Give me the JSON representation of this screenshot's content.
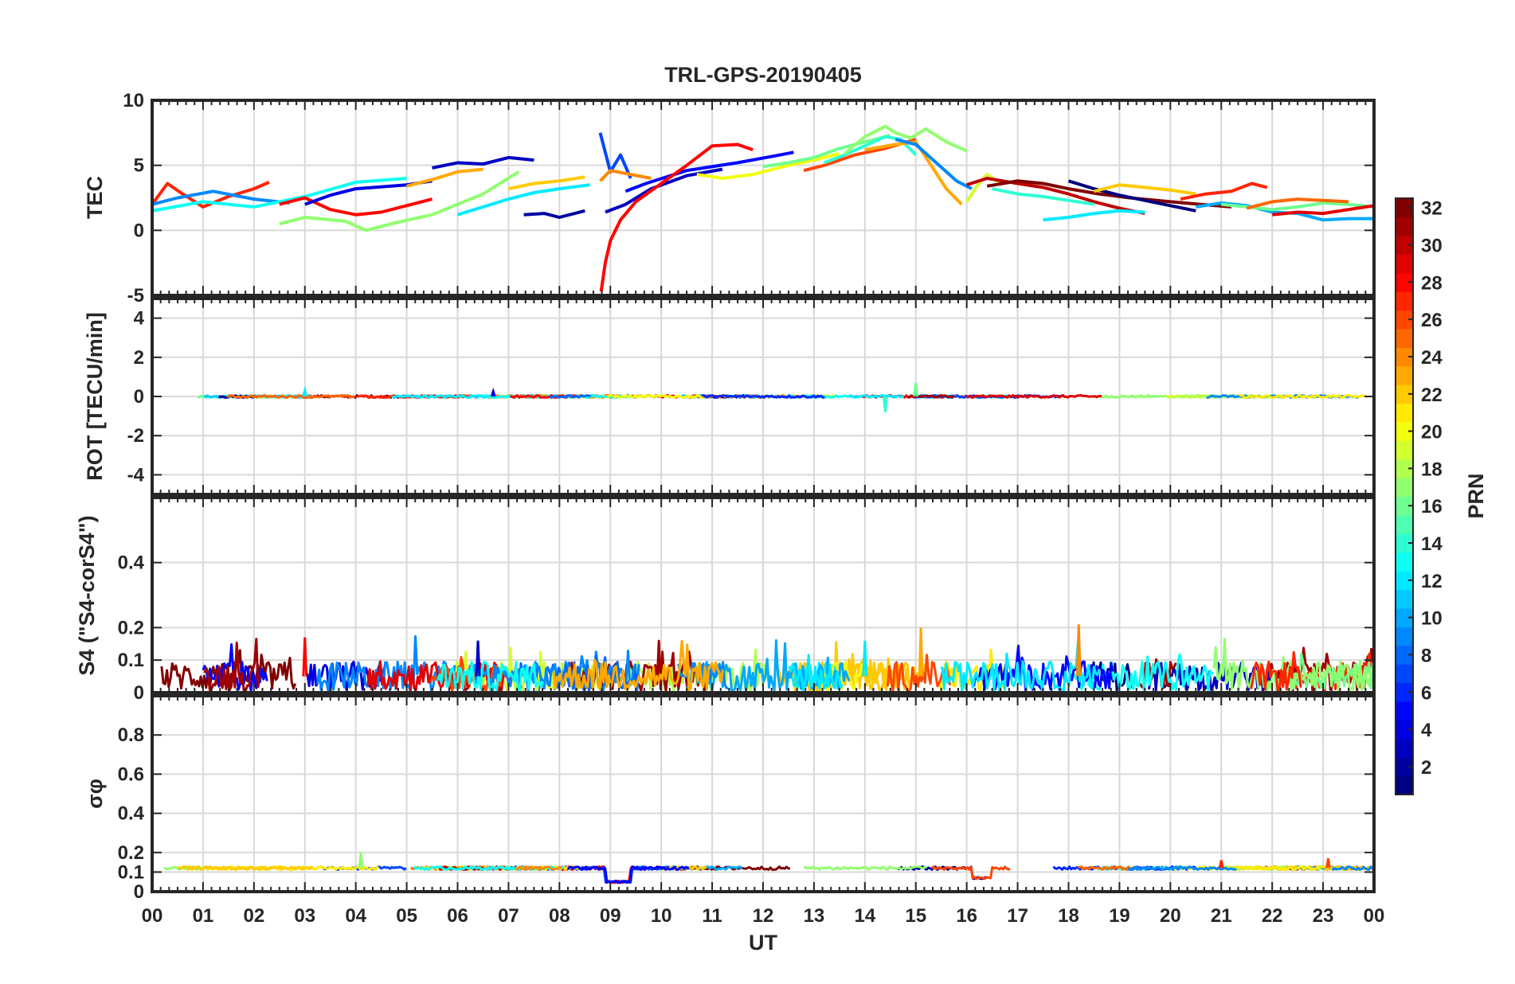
{
  "chart_data": {
    "type": "line",
    "title": "TRL-GPS-20190405",
    "xlabel": "UT",
    "x_tick_labels": [
      "00",
      "01",
      "02",
      "03",
      "04",
      "05",
      "06",
      "07",
      "08",
      "09",
      "10",
      "11",
      "12",
      "13",
      "14",
      "15",
      "16",
      "17",
      "18",
      "19",
      "20",
      "21",
      "22",
      "23",
      "00"
    ],
    "xlim": [
      0,
      24
    ],
    "colorbar": {
      "label": "PRN",
      "range": [
        1,
        32
      ],
      "tick_labels": [
        "2",
        "4",
        "6",
        "8",
        "10",
        "12",
        "14",
        "16",
        "18",
        "20",
        "22",
        "24",
        "26",
        "28",
        "30",
        "32"
      ],
      "colormap": "jet"
    },
    "panels": [
      {
        "id": "tec",
        "ylabel": "TEC",
        "ylim": [
          -5,
          10
        ],
        "ytick_labels": [
          "-5",
          "0",
          "5",
          "10"
        ],
        "series": [
          {
            "prn": 27,
            "x": [
              0.0,
              0.3,
              0.6,
              1.0,
              1.5,
              2.0,
              2.3
            ],
            "y": [
              2.0,
              3.6,
              2.8,
              1.8,
              2.6,
              3.2,
              3.7
            ]
          },
          {
            "prn": 9,
            "x": [
              0.0,
              0.5,
              1.2,
              2.0,
              2.7
            ],
            "y": [
              2.0,
              2.5,
              3.0,
              2.4,
              2.1
            ]
          },
          {
            "prn": 13,
            "x": [
              0.0,
              1.0,
              2.0,
              3.0,
              4.0,
              5.0
            ],
            "y": [
              1.5,
              2.2,
              1.8,
              2.6,
              3.7,
              4.0
            ]
          },
          {
            "prn": 28,
            "x": [
              2.5,
              3.0,
              3.5,
              4.0,
              4.5,
              5.0,
              5.5
            ],
            "y": [
              2.0,
              2.5,
              1.6,
              1.2,
              1.4,
              1.9,
              2.4
            ]
          },
          {
            "prn": 17,
            "x": [
              2.5,
              3.0,
              3.8,
              4.2,
              4.8,
              5.5,
              6.5,
              7.2
            ],
            "y": [
              0.5,
              1.0,
              0.7,
              0.0,
              0.6,
              1.2,
              2.8,
              4.5
            ]
          },
          {
            "prn": 4,
            "x": [
              3.0,
              3.5,
              4.0,
              5.0,
              5.5
            ],
            "y": [
              2.0,
              2.7,
              3.2,
              3.5,
              3.8
            ]
          },
          {
            "prn": 3,
            "x": [
              5.5,
              6.0,
              6.5,
              7.0,
              7.5
            ],
            "y": [
              4.8,
              5.2,
              5.1,
              5.6,
              5.4
            ]
          },
          {
            "prn": 23,
            "x": [
              5.0,
              5.5,
              6.0,
              6.5
            ],
            "y": [
              3.4,
              3.9,
              4.5,
              4.7
            ]
          },
          {
            "prn": 12,
            "x": [
              6.0,
              6.5,
              7.0,
              7.5,
              8.0,
              8.6
            ],
            "y": [
              1.2,
              1.8,
              2.4,
              2.9,
              3.2,
              3.5
            ]
          },
          {
            "prn": 2,
            "x": [
              7.3,
              7.7,
              8.0,
              8.5
            ],
            "y": [
              1.2,
              1.3,
              1.0,
              1.5
            ]
          },
          {
            "prn": 22,
            "x": [
              7.0,
              7.5,
              8.0,
              8.5
            ],
            "y": [
              3.2,
              3.6,
              3.8,
              4.1
            ]
          },
          {
            "prn": 7,
            "x": [
              8.8,
              9.0,
              9.2,
              9.4
            ],
            "y": [
              7.5,
              4.5,
              5.8,
              4.0
            ]
          },
          {
            "prn": 24,
            "x": [
              8.8,
              9.0,
              9.4,
              9.8
            ],
            "y": [
              3.8,
              4.6,
              4.3,
              4.0
            ]
          },
          {
            "prn": 3,
            "x": [
              8.9,
              9.3,
              9.8,
              10.5,
              11.2
            ],
            "y": [
              1.4,
              2.0,
              3.2,
              4.2,
              4.7
            ]
          },
          {
            "prn": 5,
            "x": [
              9.3,
              9.7,
              10.5,
              11.5,
              12.2,
              12.6
            ],
            "y": [
              3.0,
              3.6,
              4.6,
              5.2,
              5.7,
              6.0
            ]
          },
          {
            "prn": 28,
            "x": [
              8.82,
              8.9,
              9.0,
              9.2,
              9.5,
              10.0,
              10.5,
              11.0,
              11.5,
              11.8
            ],
            "y": [
              -4.7,
              -2.5,
              -0.8,
              0.8,
              2.2,
              3.6,
              5.0,
              6.5,
              6.6,
              6.2
            ]
          },
          {
            "prn": 20,
            "x": [
              10.7,
              11.2,
              11.8,
              12.5,
              13.0,
              13.5
            ],
            "y": [
              4.3,
              4.0,
              4.3,
              5.0,
              5.4,
              5.9
            ]
          },
          {
            "prn": 16,
            "x": [
              12.0,
              12.5,
              13.0,
              13.5,
              14.0,
              14.5
            ],
            "y": [
              4.9,
              5.2,
              5.6,
              6.3,
              6.8,
              7.3
            ]
          },
          {
            "prn": 26,
            "x": [
              12.8,
              13.2,
              13.8,
              14.4,
              15.0
            ],
            "y": [
              4.6,
              5.0,
              5.8,
              6.3,
              7.0
            ]
          },
          {
            "prn": 14,
            "x": [
              13.2,
              13.6,
              14.0,
              14.4,
              14.7,
              15.0
            ],
            "y": [
              5.2,
              5.8,
              6.5,
              7.2,
              7.0,
              5.8
            ]
          },
          {
            "prn": 17,
            "x": [
              13.6,
              14.0,
              14.4,
              14.6,
              14.9,
              15.2,
              15.6,
              16.0
            ],
            "y": [
              5.9,
              7.2,
              8.0,
              7.5,
              7.1,
              7.8,
              6.8,
              6.1
            ]
          },
          {
            "prn": 23,
            "x": [
              14.0,
              14.6,
              15.0,
              15.3,
              15.6,
              15.9
            ],
            "y": [
              6.2,
              6.6,
              6.8,
              5.0,
              3.2,
              2.0
            ]
          },
          {
            "prn": 9,
            "x": [
              14.6,
              15.0,
              15.4,
              15.8,
              16.1
            ],
            "y": [
              7.0,
              6.6,
              5.2,
              3.8,
              3.2
            ]
          },
          {
            "prn": 19,
            "x": [
              16.0,
              16.2,
              16.4,
              16.7
            ],
            "y": [
              2.2,
              3.4,
              4.3,
              3.5
            ]
          },
          {
            "prn": 30,
            "x": [
              16.0,
              16.4,
              17.0,
              17.5,
              18.0,
              18.5,
              19.0,
              19.5
            ],
            "y": [
              3.5,
              4.0,
              3.6,
              3.3,
              2.8,
              2.2,
              1.7,
              1.3
            ]
          },
          {
            "prn": 32,
            "x": [
              16.4,
              17.0,
              17.5,
              18.0,
              18.6,
              19.2,
              20.0,
              20.6,
              21.2
            ],
            "y": [
              3.4,
              3.8,
              3.6,
              3.2,
              2.8,
              2.5,
              2.2,
              2.0,
              1.8
            ]
          },
          {
            "prn": 14,
            "x": [
              16.5,
              17.0,
              17.5,
              18.0,
              18.5
            ],
            "y": [
              3.2,
              2.8,
              2.6,
              2.3,
              2.0
            ]
          },
          {
            "prn": 12,
            "x": [
              17.5,
              18.0,
              18.5,
              19.0,
              19.5
            ],
            "y": [
              0.8,
              1.0,
              1.3,
              1.5,
              1.4
            ]
          },
          {
            "prn": 1,
            "x": [
              18.0,
              18.5,
              19.0,
              19.5,
              20.0,
              20.5
            ],
            "y": [
              3.8,
              3.2,
              2.7,
              2.3,
              1.9,
              1.5
            ]
          },
          {
            "prn": 22,
            "x": [
              18.5,
              19.0,
              19.5,
              20.0,
              20.5
            ],
            "y": [
              3.0,
              3.5,
              3.3,
              3.1,
              2.8
            ]
          },
          {
            "prn": 27,
            "x": [
              20.2,
              20.7,
              21.2,
              21.6,
              21.9
            ],
            "y": [
              2.4,
              2.8,
              3.0,
              3.6,
              3.3
            ]
          },
          {
            "prn": 10,
            "x": [
              20.5,
              21.0,
              21.5,
              22.0,
              22.5,
              23.0,
              23.5,
              24.0
            ],
            "y": [
              1.8,
              2.1,
              1.9,
              1.4,
              1.3,
              0.8,
              0.9,
              0.9
            ]
          },
          {
            "prn": 16,
            "x": [
              21.0,
              21.5,
              22.0,
              22.5,
              23.0,
              23.5,
              24.0
            ],
            "y": [
              2.0,
              1.8,
              1.6,
              1.8,
              2.1,
              2.0,
              1.8
            ]
          },
          {
            "prn": 25,
            "x": [
              21.5,
              22.0,
              22.5,
              23.0,
              23.5
            ],
            "y": [
              1.7,
              2.2,
              2.4,
              2.3,
              2.2
            ]
          },
          {
            "prn": 29,
            "x": [
              22.0,
              22.5,
              23.0,
              23.5,
              24.0
            ],
            "y": [
              1.2,
              1.4,
              1.3,
              1.6,
              1.9
            ]
          }
        ]
      },
      {
        "id": "rot",
        "ylabel": "ROT [TECU/min]",
        "ylim": [
          -5,
          5
        ],
        "ytick_labels": [
          "-4",
          "-2",
          "0",
          "2",
          "4"
        ],
        "baseline": 0.0,
        "noise": 0.06,
        "spikes": [
          {
            "x": 14.4,
            "y": -0.8,
            "prn": 14
          },
          {
            "x": 15.0,
            "y": 0.7,
            "prn": 16
          },
          {
            "x": 3.0,
            "y": 0.3,
            "prn": 12
          },
          {
            "x": 6.7,
            "y": 0.25,
            "prn": 4
          }
        ]
      },
      {
        "id": "s4",
        "ylabel": "S4 (\"S4-corS4\")",
        "ylim": [
          0,
          0.6
        ],
        "ytick_labels": [
          "0",
          "0.1",
          "0.2",
          "0.4"
        ],
        "baseline": 0.05,
        "noise": 0.045,
        "spikes": [
          {
            "x": 15.1,
            "y": 0.2,
            "prn": 23
          },
          {
            "x": 18.2,
            "y": 0.21,
            "prn": 24
          },
          {
            "x": 3.0,
            "y": 0.17,
            "prn": 28
          },
          {
            "x": 6.4,
            "y": 0.16,
            "prn": 3
          },
          {
            "x": 14.0,
            "y": 0.16,
            "prn": 12
          }
        ]
      },
      {
        "id": "sigma",
        "ylabel": "σφ",
        "ylim": [
          0,
          1
        ],
        "ytick_labels": [
          "0",
          "0.1",
          "0.2",
          "0.4",
          "0.6",
          "0.8"
        ],
        "baseline": 0.12,
        "noise": 0.008,
        "dips": [
          [
            8.9,
            9.4,
            0.05
          ],
          [
            16.1,
            16.5,
            0.07
          ]
        ],
        "spikes": [
          {
            "x": 4.1,
            "y": 0.2,
            "prn": 17
          },
          {
            "x": 23.1,
            "y": 0.17,
            "prn": 26
          },
          {
            "x": 21.0,
            "y": 0.16,
            "prn": 27
          }
        ]
      }
    ]
  }
}
